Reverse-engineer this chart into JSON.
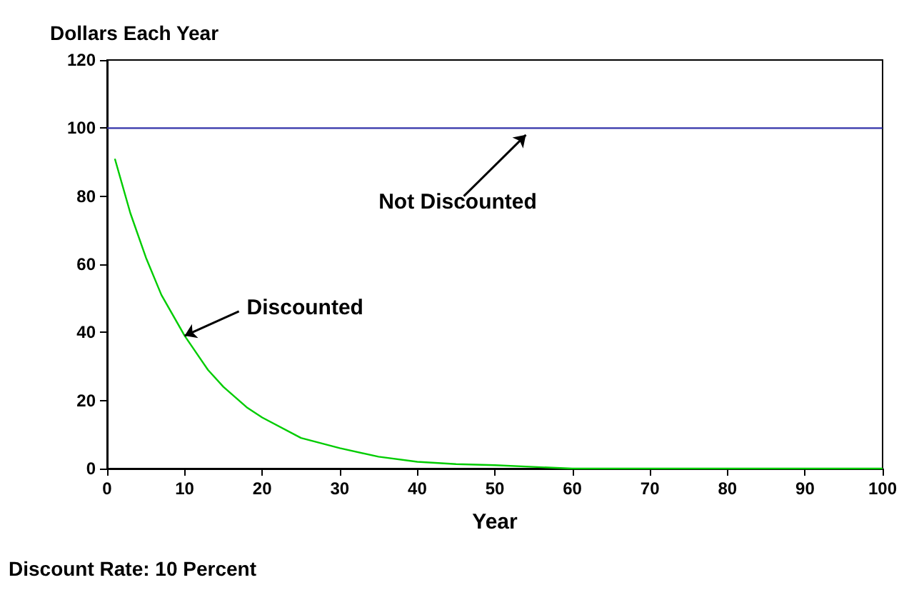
{
  "chart_data": {
    "type": "line",
    "xlabel": "Year",
    "ylabel": "Dollars Each Year",
    "series": [
      {
        "x": [
          0,
          100
        ],
        "values": [
          100,
          100
        ],
        "color": "#3333aa"
      },
      {
        "x": [
          1,
          3,
          5,
          7,
          10,
          13,
          15,
          18,
          20,
          25,
          30,
          35,
          40,
          45,
          50,
          55,
          60,
          70,
          80,
          90,
          100
        ],
        "values": [
          91,
          75,
          62,
          51,
          39,
          29,
          24,
          18,
          15,
          9,
          6,
          3.5,
          2,
          1.3,
          1,
          0.5,
          0,
          0,
          0,
          0,
          0
        ],
        "color": "#00cc00"
      }
    ],
    "xlim": [
      0,
      100
    ],
    "xticks": [
      0,
      10,
      20,
      30,
      40,
      50,
      60,
      70,
      80,
      90,
      100
    ],
    "ylim": [
      0,
      120
    ],
    "yticks": [
      0,
      20,
      40,
      60,
      80,
      100,
      120
    ],
    "grid": false,
    "marker": "none",
    "line_style": "solid",
    "annotations": [
      {
        "text": "Not Discounted",
        "x": 54,
        "y": 98
      },
      {
        "text": "Discounted",
        "x": 10,
        "y": 39
      },
      "Discount Rate: 10 Percent"
    ]
  }
}
